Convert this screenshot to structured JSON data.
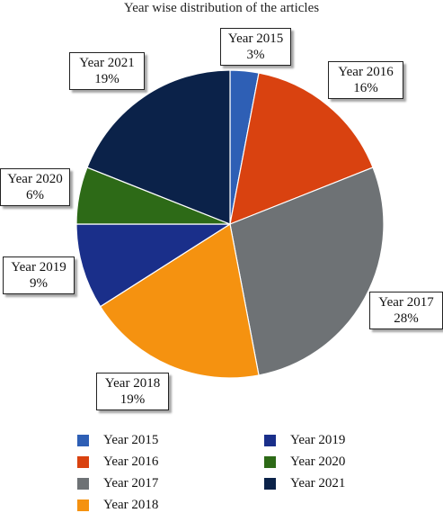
{
  "chart_data": {
    "type": "pie",
    "title": "Year wise distribution of the articles",
    "slices": [
      {
        "label": "Year 2015",
        "value": 3,
        "value_label": "3%",
        "color": "#2e5fb5"
      },
      {
        "label": "Year 2016",
        "value": 16,
        "value_label": "16%",
        "color": "#d94210"
      },
      {
        "label": "Year 2017",
        "value": 28,
        "value_label": "28%",
        "color": "#6e7275"
      },
      {
        "label": "Year 2018",
        "value": 19,
        "value_label": "19%",
        "color": "#f59210"
      },
      {
        "label": "Year 2019",
        "value": 9,
        "value_label": "9%",
        "color": "#1a2f8a"
      },
      {
        "label": "Year 2020",
        "value": 6,
        "value_label": "6%",
        "color": "#2d6a17"
      },
      {
        "label": "Year 2021",
        "value": 19,
        "value_label": "19%",
        "color": "#0b2249"
      }
    ],
    "legend": {
      "placement": "bottom",
      "entries": [
        "Year 2015",
        "Year 2016",
        "Year 2017",
        "Year 2018",
        "Year 2019",
        "Year 2020",
        "Year 2021"
      ]
    }
  }
}
